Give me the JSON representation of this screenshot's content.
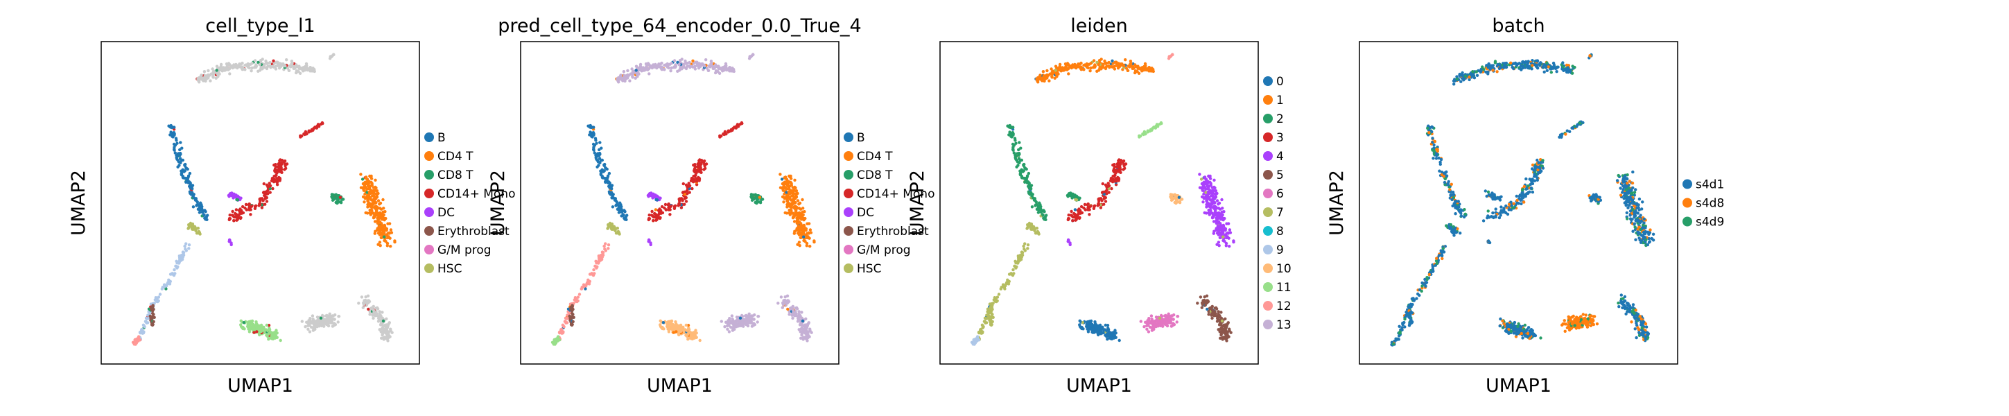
{
  "chart_data": [
    {
      "type": "scatter",
      "title": "cell_type_l1",
      "xlabel": "UMAP1",
      "ylabel": "UMAP2",
      "grid": false,
      "legend_position": "right",
      "legend": [
        {
          "label": "B",
          "color": "#1f77b4"
        },
        {
          "label": "CD4 T",
          "color": "#ff7f0e"
        },
        {
          "label": "CD8 T",
          "color": "#279e68"
        },
        {
          "label": "CD14+ Mono",
          "color": "#d62728"
        },
        {
          "label": "DC",
          "color": "#aa40fc"
        },
        {
          "label": "Erythroblast",
          "color": "#8c564b"
        },
        {
          "label": "G/M prog",
          "color": "#e377c2"
        },
        {
          "label": "HSC",
          "color": "#b5bd61"
        }
      ]
    },
    {
      "type": "scatter",
      "title": "pred_cell_type_64_encoder_0.0_True_4",
      "xlabel": "UMAP1",
      "ylabel": "UMAP2",
      "grid": false,
      "legend_position": "right",
      "legend": [
        {
          "label": "B",
          "color": "#1f77b4"
        },
        {
          "label": "CD4 T",
          "color": "#ff7f0e"
        },
        {
          "label": "CD8 T",
          "color": "#279e68"
        },
        {
          "label": "CD14+ Mono",
          "color": "#d62728"
        },
        {
          "label": "DC",
          "color": "#aa40fc"
        },
        {
          "label": "Erythroblast",
          "color": "#8c564b"
        },
        {
          "label": "G/M prog",
          "color": "#e377c2"
        },
        {
          "label": "HSC",
          "color": "#b5bd61"
        }
      ]
    },
    {
      "type": "scatter",
      "title": "leiden",
      "xlabel": "UMAP1",
      "ylabel": "UMAP2",
      "grid": false,
      "legend_position": "right",
      "legend": [
        {
          "label": "0",
          "color": "#1f77b4"
        },
        {
          "label": "1",
          "color": "#ff7f0e"
        },
        {
          "label": "2",
          "color": "#279e68"
        },
        {
          "label": "3",
          "color": "#d62728"
        },
        {
          "label": "4",
          "color": "#aa40fc"
        },
        {
          "label": "5",
          "color": "#8c564b"
        },
        {
          "label": "6",
          "color": "#e377c2"
        },
        {
          "label": "7",
          "color": "#b5bd61"
        },
        {
          "label": "8",
          "color": "#17becf"
        },
        {
          "label": "9",
          "color": "#aec7e8"
        },
        {
          "label": "10",
          "color": "#ffbb78"
        },
        {
          "label": "11",
          "color": "#98df8a"
        },
        {
          "label": "12",
          "color": "#ff9896"
        },
        {
          "label": "13",
          "color": "#c5b0d5"
        }
      ]
    },
    {
      "type": "scatter",
      "title": "batch",
      "xlabel": "UMAP1",
      "ylabel": "UMAP2",
      "grid": false,
      "legend_position": "right",
      "legend": [
        {
          "label": "s4d1",
          "color": "#1f77b4"
        },
        {
          "label": "s4d8",
          "color": "#ff7f0e"
        },
        {
          "label": "s4d9",
          "color": "#279e68"
        }
      ]
    }
  ]
}
